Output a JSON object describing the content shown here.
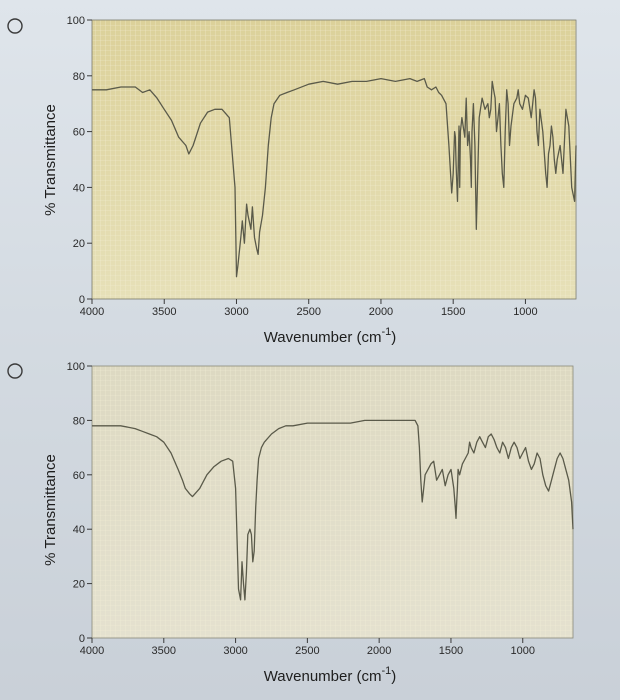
{
  "colors": {
    "plot_bg_top": "#e2d9a6",
    "plot_bg_bottom": "#e8e3bf",
    "spectrum_line": "#5a5a4a",
    "axis": "#3a3a3a"
  },
  "options": [
    {
      "radio_selected": false
    },
    {
      "radio_selected": false
    }
  ],
  "chart_data": [
    {
      "type": "line",
      "title": "",
      "xlabel": "Wavenumber (cm",
      "xlabel_superscript": "-1",
      "xlabel_close": ")",
      "ylabel": "% Transmittance",
      "xlim": [
        4000,
        650
      ],
      "ylim": [
        0,
        100
      ],
      "x_reversed": true,
      "xticks": [
        4000,
        3500,
        3000,
        2500,
        2000,
        1500,
        1000
      ],
      "yticks": [
        0,
        20,
        40,
        60,
        80,
        100
      ],
      "grid": true,
      "series": [
        {
          "x": [
            4000,
            3900,
            3800,
            3700,
            3650,
            3600,
            3550,
            3500,
            3450,
            3400,
            3350,
            3330,
            3300,
            3250,
            3200,
            3150,
            3100,
            3050,
            3010,
            3000,
            2990,
            2970,
            2960,
            2945,
            2930,
            2920,
            2900,
            2890,
            2875,
            2860,
            2850,
            2840,
            2820,
            2800,
            2780,
            2760,
            2740,
            2700,
            2650,
            2600,
            2500,
            2400,
            2300,
            2200,
            2100,
            2000,
            1900,
            1800,
            1750,
            1700,
            1680,
            1650,
            1620,
            1600,
            1580,
            1550,
            1530,
            1510,
            1500,
            1490,
            1485,
            1480,
            1470,
            1460,
            1455,
            1450,
            1440,
            1420,
            1410,
            1400,
            1390,
            1380,
            1375,
            1370,
            1360,
            1350,
            1340,
            1320,
            1300,
            1280,
            1260,
            1250,
            1240,
            1230,
            1220,
            1210,
            1200,
            1190,
            1180,
            1170,
            1160,
            1150,
            1140,
            1130,
            1120,
            1110,
            1100,
            1080,
            1060,
            1050,
            1040,
            1020,
            1000,
            980,
            960,
            950,
            940,
            930,
            920,
            910,
            900,
            880,
            860,
            850,
            840,
            830,
            820,
            810,
            800,
            790,
            780,
            760,
            740,
            720,
            700,
            680,
            660,
            650
          ],
          "y": [
            75,
            75,
            76,
            76,
            74,
            75,
            72,
            68,
            64,
            58,
            55,
            52,
            55,
            63,
            67,
            68,
            68,
            65,
            40,
            8,
            12,
            22,
            28,
            20,
            34,
            30,
            25,
            33,
            22,
            18,
            16,
            24,
            30,
            40,
            55,
            65,
            70,
            73,
            74,
            75,
            77,
            78,
            77,
            78,
            78,
            79,
            78,
            79,
            78,
            79,
            76,
            75,
            76,
            74,
            73,
            70,
            55,
            38,
            45,
            60,
            58,
            48,
            35,
            62,
            40,
            60,
            65,
            58,
            72,
            55,
            60,
            50,
            40,
            60,
            70,
            55,
            25,
            65,
            72,
            68,
            70,
            65,
            68,
            78,
            75,
            72,
            60,
            65,
            70,
            55,
            45,
            40,
            60,
            75,
            70,
            55,
            62,
            70,
            72,
            75,
            70,
            68,
            73,
            72,
            65,
            70,
            75,
            72,
            60,
            55,
            68,
            60,
            45,
            40,
            52,
            55,
            62,
            58,
            50,
            45,
            50,
            55,
            45,
            68,
            62,
            40,
            35,
            55
          ],
          "name": ""
        }
      ]
    },
    {
      "type": "line",
      "title": "",
      "xlabel": "Wavenumber (cm",
      "xlabel_superscript": "-1",
      "xlabel_close": ")",
      "ylabel": "% Transmittance",
      "xlim": [
        4000,
        650
      ],
      "ylim": [
        0,
        100
      ],
      "x_reversed": true,
      "xticks": [
        4000,
        3500,
        3000,
        2500,
        2000,
        1500,
        1000
      ],
      "yticks": [
        0,
        20,
        40,
        60,
        80,
        100
      ],
      "grid": true,
      "series": [
        {
          "x": [
            4000,
            3900,
            3800,
            3700,
            3650,
            3600,
            3550,
            3500,
            3450,
            3400,
            3370,
            3350,
            3320,
            3300,
            3250,
            3200,
            3150,
            3100,
            3050,
            3020,
            3000,
            2980,
            2965,
            2955,
            2945,
            2935,
            2925,
            2915,
            2900,
            2890,
            2880,
            2870,
            2860,
            2850,
            2840,
            2820,
            2800,
            2750,
            2700,
            2650,
            2600,
            2500,
            2400,
            2300,
            2200,
            2100,
            2000,
            1900,
            1800,
            1750,
            1730,
            1720,
            1710,
            1700,
            1690,
            1680,
            1660,
            1640,
            1620,
            1600,
            1580,
            1560,
            1540,
            1520,
            1500,
            1480,
            1470,
            1465,
            1460,
            1455,
            1450,
            1440,
            1420,
            1400,
            1380,
            1370,
            1360,
            1340,
            1320,
            1300,
            1280,
            1260,
            1240,
            1220,
            1200,
            1180,
            1160,
            1140,
            1120,
            1100,
            1080,
            1060,
            1040,
            1020,
            1000,
            980,
            960,
            940,
            920,
            900,
            880,
            860,
            840,
            820,
            800,
            780,
            760,
            740,
            720,
            700,
            680,
            660,
            650
          ],
          "y": [
            78,
            78,
            78,
            77,
            76,
            75,
            74,
            72,
            68,
            62,
            58,
            55,
            53,
            52,
            55,
            60,
            63,
            65,
            66,
            65,
            55,
            18,
            14,
            28,
            20,
            14,
            24,
            38,
            40,
            38,
            28,
            32,
            48,
            58,
            66,
            70,
            72,
            75,
            77,
            78,
            78,
            79,
            79,
            79,
            79,
            80,
            80,
            80,
            80,
            80,
            78,
            70,
            58,
            50,
            55,
            60,
            62,
            64,
            65,
            58,
            60,
            62,
            56,
            60,
            62,
            55,
            48,
            44,
            50,
            55,
            62,
            60,
            64,
            66,
            68,
            72,
            70,
            68,
            72,
            74,
            72,
            70,
            74,
            75,
            73,
            70,
            68,
            72,
            70,
            66,
            70,
            72,
            70,
            66,
            68,
            70,
            65,
            62,
            64,
            68,
            66,
            60,
            56,
            54,
            58,
            62,
            66,
            68,
            66,
            62,
            58,
            50,
            40
          ],
          "name": ""
        }
      ]
    }
  ]
}
